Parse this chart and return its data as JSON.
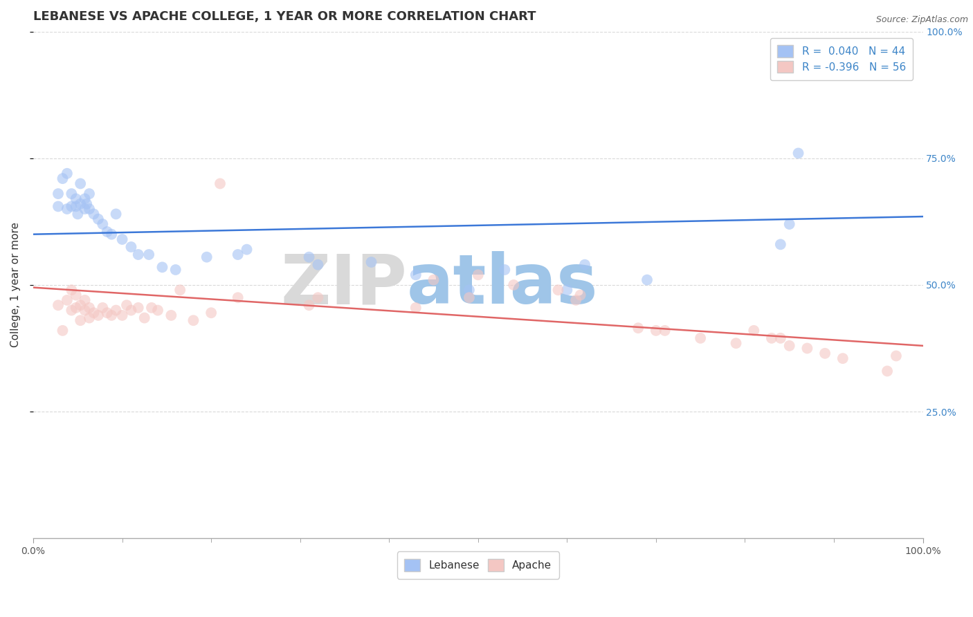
{
  "title": "LEBANESE VS APACHE COLLEGE, 1 YEAR OR MORE CORRELATION CHART",
  "source_text": "Source: ZipAtlas.com",
  "ylabel": "College, 1 year or more",
  "xlim": [
    0.0,
    1.0
  ],
  "ylim": [
    0.0,
    1.0
  ],
  "x_tick_labels": [
    "0.0%",
    "100.0%"
  ],
  "y_tick_labels_right": [
    "25.0%",
    "50.0%",
    "75.0%",
    "100.0%"
  ],
  "legend_r1": "R =  0.040",
  "legend_n1": "N = 44",
  "legend_r2": "R = -0.396",
  "legend_n2": "N = 56",
  "blue_color": "#a4c2f4",
  "pink_color": "#f4c7c3",
  "blue_line_color": "#3c78d8",
  "pink_line_color": "#e06666",
  "watermark_zip": "ZIP",
  "watermark_atlas": "atlas",
  "watermark_color_zip": "#d9d9d9",
  "watermark_color_atlas": "#9fc5e8",
  "watermark_fontsize": 72,
  "blue_scatter_x": [
    0.028,
    0.028,
    0.033,
    0.038,
    0.038,
    0.043,
    0.043,
    0.048,
    0.048,
    0.05,
    0.053,
    0.053,
    0.058,
    0.058,
    0.06,
    0.063,
    0.063,
    0.068,
    0.073,
    0.078,
    0.083,
    0.088,
    0.093,
    0.1,
    0.11,
    0.118,
    0.13,
    0.145,
    0.16,
    0.195,
    0.23,
    0.24,
    0.31,
    0.32,
    0.38,
    0.43,
    0.49,
    0.53,
    0.6,
    0.62,
    0.69,
    0.84,
    0.85,
    0.86
  ],
  "blue_scatter_y": [
    0.655,
    0.68,
    0.71,
    0.65,
    0.72,
    0.655,
    0.68,
    0.655,
    0.67,
    0.64,
    0.66,
    0.7,
    0.65,
    0.67,
    0.66,
    0.65,
    0.68,
    0.64,
    0.63,
    0.62,
    0.605,
    0.6,
    0.64,
    0.59,
    0.575,
    0.56,
    0.56,
    0.535,
    0.53,
    0.555,
    0.56,
    0.57,
    0.555,
    0.54,
    0.545,
    0.52,
    0.49,
    0.53,
    0.49,
    0.54,
    0.51,
    0.58,
    0.62,
    0.76
  ],
  "pink_scatter_x": [
    0.028,
    0.033,
    0.038,
    0.043,
    0.043,
    0.048,
    0.048,
    0.053,
    0.053,
    0.058,
    0.058,
    0.063,
    0.063,
    0.068,
    0.073,
    0.078,
    0.083,
    0.088,
    0.093,
    0.1,
    0.105,
    0.11,
    0.118,
    0.125,
    0.133,
    0.14,
    0.155,
    0.165,
    0.18,
    0.2,
    0.21,
    0.23,
    0.31,
    0.32,
    0.43,
    0.45,
    0.49,
    0.5,
    0.54,
    0.59,
    0.61,
    0.615,
    0.68,
    0.7,
    0.71,
    0.75,
    0.79,
    0.81,
    0.83,
    0.84,
    0.85,
    0.87,
    0.89,
    0.91,
    0.96,
    0.97
  ],
  "pink_scatter_y": [
    0.46,
    0.41,
    0.47,
    0.45,
    0.49,
    0.455,
    0.48,
    0.43,
    0.46,
    0.45,
    0.47,
    0.435,
    0.455,
    0.445,
    0.44,
    0.455,
    0.445,
    0.44,
    0.45,
    0.44,
    0.46,
    0.45,
    0.455,
    0.435,
    0.455,
    0.45,
    0.44,
    0.49,
    0.43,
    0.445,
    0.7,
    0.475,
    0.46,
    0.475,
    0.455,
    0.51,
    0.475,
    0.52,
    0.5,
    0.49,
    0.47,
    0.48,
    0.415,
    0.41,
    0.41,
    0.395,
    0.385,
    0.41,
    0.395,
    0.395,
    0.38,
    0.375,
    0.365,
    0.355,
    0.33,
    0.36
  ],
  "blue_line_y_start": 0.6,
  "blue_line_y_end": 0.635,
  "pink_line_y_start": 0.495,
  "pink_line_y_end": 0.38,
  "grid_color": "#d9d9d9",
  "bg_color": "#ffffff",
  "title_fontsize": 13,
  "axis_fontsize": 11,
  "tick_fontsize": 10,
  "marker_size": 130,
  "marker_alpha": 0.6,
  "line_width": 1.8,
  "right_tick_color": "#3d85c8"
}
